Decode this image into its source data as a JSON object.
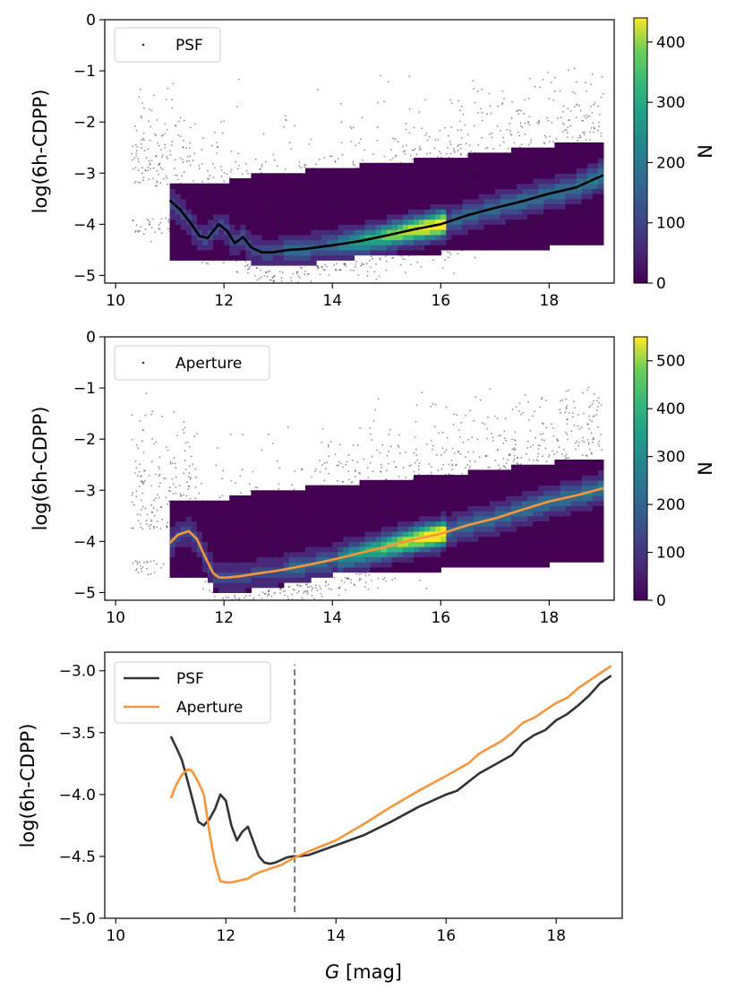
{
  "chart_data": [
    {
      "type": "heatmap",
      "panel": "top",
      "ylabel": "log(6h-CDPP)",
      "xlim": [
        9.8,
        19.2
      ],
      "ylim": [
        -5.15,
        0
      ],
      "xticks": [
        10,
        12,
        14,
        16,
        18
      ],
      "yticks": [
        0,
        -1,
        -2,
        -3,
        -4,
        -5
      ],
      "xtick_labels": [
        "10",
        "12",
        "14",
        "16",
        "18"
      ],
      "ytick_labels": [
        "0",
        "−1",
        "−2",
        "−3",
        "−4",
        "−5"
      ],
      "legend": {
        "label": "PSF",
        "position": "upper-left"
      },
      "colorbar": {
        "label": "N",
        "min": 0,
        "max": 440,
        "ticks": [
          0,
          100,
          200,
          300,
          400
        ],
        "tick_labels": [
          "0",
          "100",
          "200",
          "300",
          "400"
        ]
      },
      "median_line": {
        "color": "#000000",
        "x": [
          11.0,
          11.2,
          11.4,
          11.55,
          11.7,
          11.9,
          12.05,
          12.2,
          12.35,
          12.5,
          12.7,
          12.9,
          13.2,
          13.5,
          14.0,
          14.5,
          15.0,
          15.5,
          16.0,
          16.5,
          17.0,
          17.5,
          18.0,
          18.5,
          19.0
        ],
        "y": [
          -3.53,
          -3.72,
          -4.0,
          -4.23,
          -4.27,
          -4.0,
          -4.12,
          -4.37,
          -4.25,
          -4.45,
          -4.55,
          -4.55,
          -4.5,
          -4.48,
          -4.41,
          -4.33,
          -4.22,
          -4.1,
          -4.0,
          -3.82,
          -3.68,
          -3.55,
          -3.4,
          -3.28,
          -3.04
        ]
      }
    },
    {
      "type": "heatmap",
      "panel": "middle",
      "ylabel": "log(6h-CDPP)",
      "xlim": [
        9.8,
        19.2
      ],
      "ylim": [
        -5.15,
        0
      ],
      "xticks": [
        10,
        12,
        14,
        16,
        18
      ],
      "yticks": [
        0,
        -1,
        -2,
        -3,
        -4,
        -5
      ],
      "xtick_labels": [
        "10",
        "12",
        "14",
        "16",
        "18"
      ],
      "ytick_labels": [
        "0",
        "−1",
        "−2",
        "−3",
        "−4",
        "−5"
      ],
      "legend": {
        "label": "Aperture",
        "position": "upper-left"
      },
      "colorbar": {
        "label": "N",
        "min": 0,
        "max": 550,
        "ticks": [
          0,
          100,
          200,
          300,
          400,
          500
        ],
        "tick_labels": [
          "0",
          "100",
          "200",
          "300",
          "400",
          "500"
        ]
      },
      "median_line": {
        "color": "#f7953a",
        "x": [
          11.0,
          11.15,
          11.35,
          11.5,
          11.65,
          11.8,
          11.9,
          12.0,
          12.3,
          12.6,
          13.0,
          13.5,
          14.0,
          14.5,
          15.0,
          15.5,
          16.0,
          16.5,
          17.0,
          17.5,
          18.0,
          18.5,
          19.0
        ],
        "y": [
          -4.03,
          -3.87,
          -3.8,
          -3.95,
          -4.3,
          -4.62,
          -4.7,
          -4.71,
          -4.68,
          -4.63,
          -4.57,
          -4.47,
          -4.36,
          -4.23,
          -4.1,
          -3.96,
          -3.85,
          -3.68,
          -3.55,
          -3.38,
          -3.22,
          -3.1,
          -2.96
        ]
      }
    },
    {
      "type": "line",
      "panel": "bottom",
      "xlabel_italic": "G",
      "xlabel_rest": " [mag]",
      "ylabel": "log(6h-CDPP)",
      "xlim": [
        9.8,
        19.2
      ],
      "ylim": [
        -5.0,
        -2.85
      ],
      "xticks": [
        10,
        12,
        14,
        16,
        18
      ],
      "yticks": [
        -3.0,
        -3.5,
        -4.0,
        -4.5,
        -5.0
      ],
      "xtick_labels": [
        "10",
        "12",
        "14",
        "16",
        "18"
      ],
      "ytick_labels": [
        "−3.0",
        "−3.5",
        "−4.0",
        "−4.5",
        "−5.0"
      ],
      "vline": {
        "x": 13.25,
        "ymin": -4.95,
        "ymax": -2.95,
        "style": "dashed"
      },
      "series": [
        {
          "name": "PSF",
          "color": "#333333",
          "x": [
            11.0,
            11.1,
            11.2,
            11.3,
            11.4,
            11.5,
            11.6,
            11.7,
            11.8,
            11.9,
            12.0,
            12.1,
            12.2,
            12.3,
            12.4,
            12.5,
            12.6,
            12.7,
            12.8,
            12.9,
            13.0,
            13.1,
            13.2,
            13.3,
            13.5,
            14.0,
            14.5,
            15.0,
            15.5,
            16.0,
            16.2,
            16.4,
            16.6,
            16.8,
            17.0,
            17.2,
            17.4,
            17.6,
            17.8,
            18.0,
            18.2,
            18.4,
            18.6,
            18.8,
            19.0
          ],
          "y": [
            -3.53,
            -3.62,
            -3.72,
            -3.88,
            -4.05,
            -4.22,
            -4.25,
            -4.2,
            -4.12,
            -4.0,
            -4.05,
            -4.25,
            -4.37,
            -4.3,
            -4.26,
            -4.38,
            -4.5,
            -4.55,
            -4.56,
            -4.55,
            -4.53,
            -4.51,
            -4.5,
            -4.5,
            -4.49,
            -4.41,
            -4.33,
            -4.22,
            -4.1,
            -4.0,
            -3.97,
            -3.9,
            -3.83,
            -3.78,
            -3.73,
            -3.68,
            -3.58,
            -3.52,
            -3.48,
            -3.4,
            -3.35,
            -3.28,
            -3.2,
            -3.1,
            -3.04
          ]
        },
        {
          "name": "Aperture",
          "color": "#f7953a",
          "x": [
            11.0,
            11.1,
            11.2,
            11.3,
            11.35,
            11.4,
            11.5,
            11.6,
            11.7,
            11.8,
            11.9,
            12.0,
            12.1,
            12.2,
            12.3,
            12.4,
            12.5,
            12.6,
            12.8,
            13.0,
            13.2,
            13.5,
            14.0,
            14.5,
            15.0,
            15.5,
            16.0,
            16.2,
            16.4,
            16.6,
            16.8,
            17.0,
            17.2,
            17.4,
            17.6,
            17.8,
            18.0,
            18.2,
            18.4,
            18.6,
            18.8,
            19.0
          ],
          "y": [
            -4.03,
            -3.92,
            -3.84,
            -3.8,
            -3.8,
            -3.82,
            -3.9,
            -4.0,
            -4.3,
            -4.55,
            -4.7,
            -4.71,
            -4.71,
            -4.7,
            -4.69,
            -4.68,
            -4.65,
            -4.63,
            -4.6,
            -4.57,
            -4.52,
            -4.46,
            -4.37,
            -4.24,
            -4.1,
            -3.97,
            -3.85,
            -3.8,
            -3.75,
            -3.67,
            -3.62,
            -3.57,
            -3.5,
            -3.42,
            -3.38,
            -3.32,
            -3.26,
            -3.22,
            -3.14,
            -3.08,
            -3.02,
            -2.96
          ]
        }
      ]
    }
  ]
}
